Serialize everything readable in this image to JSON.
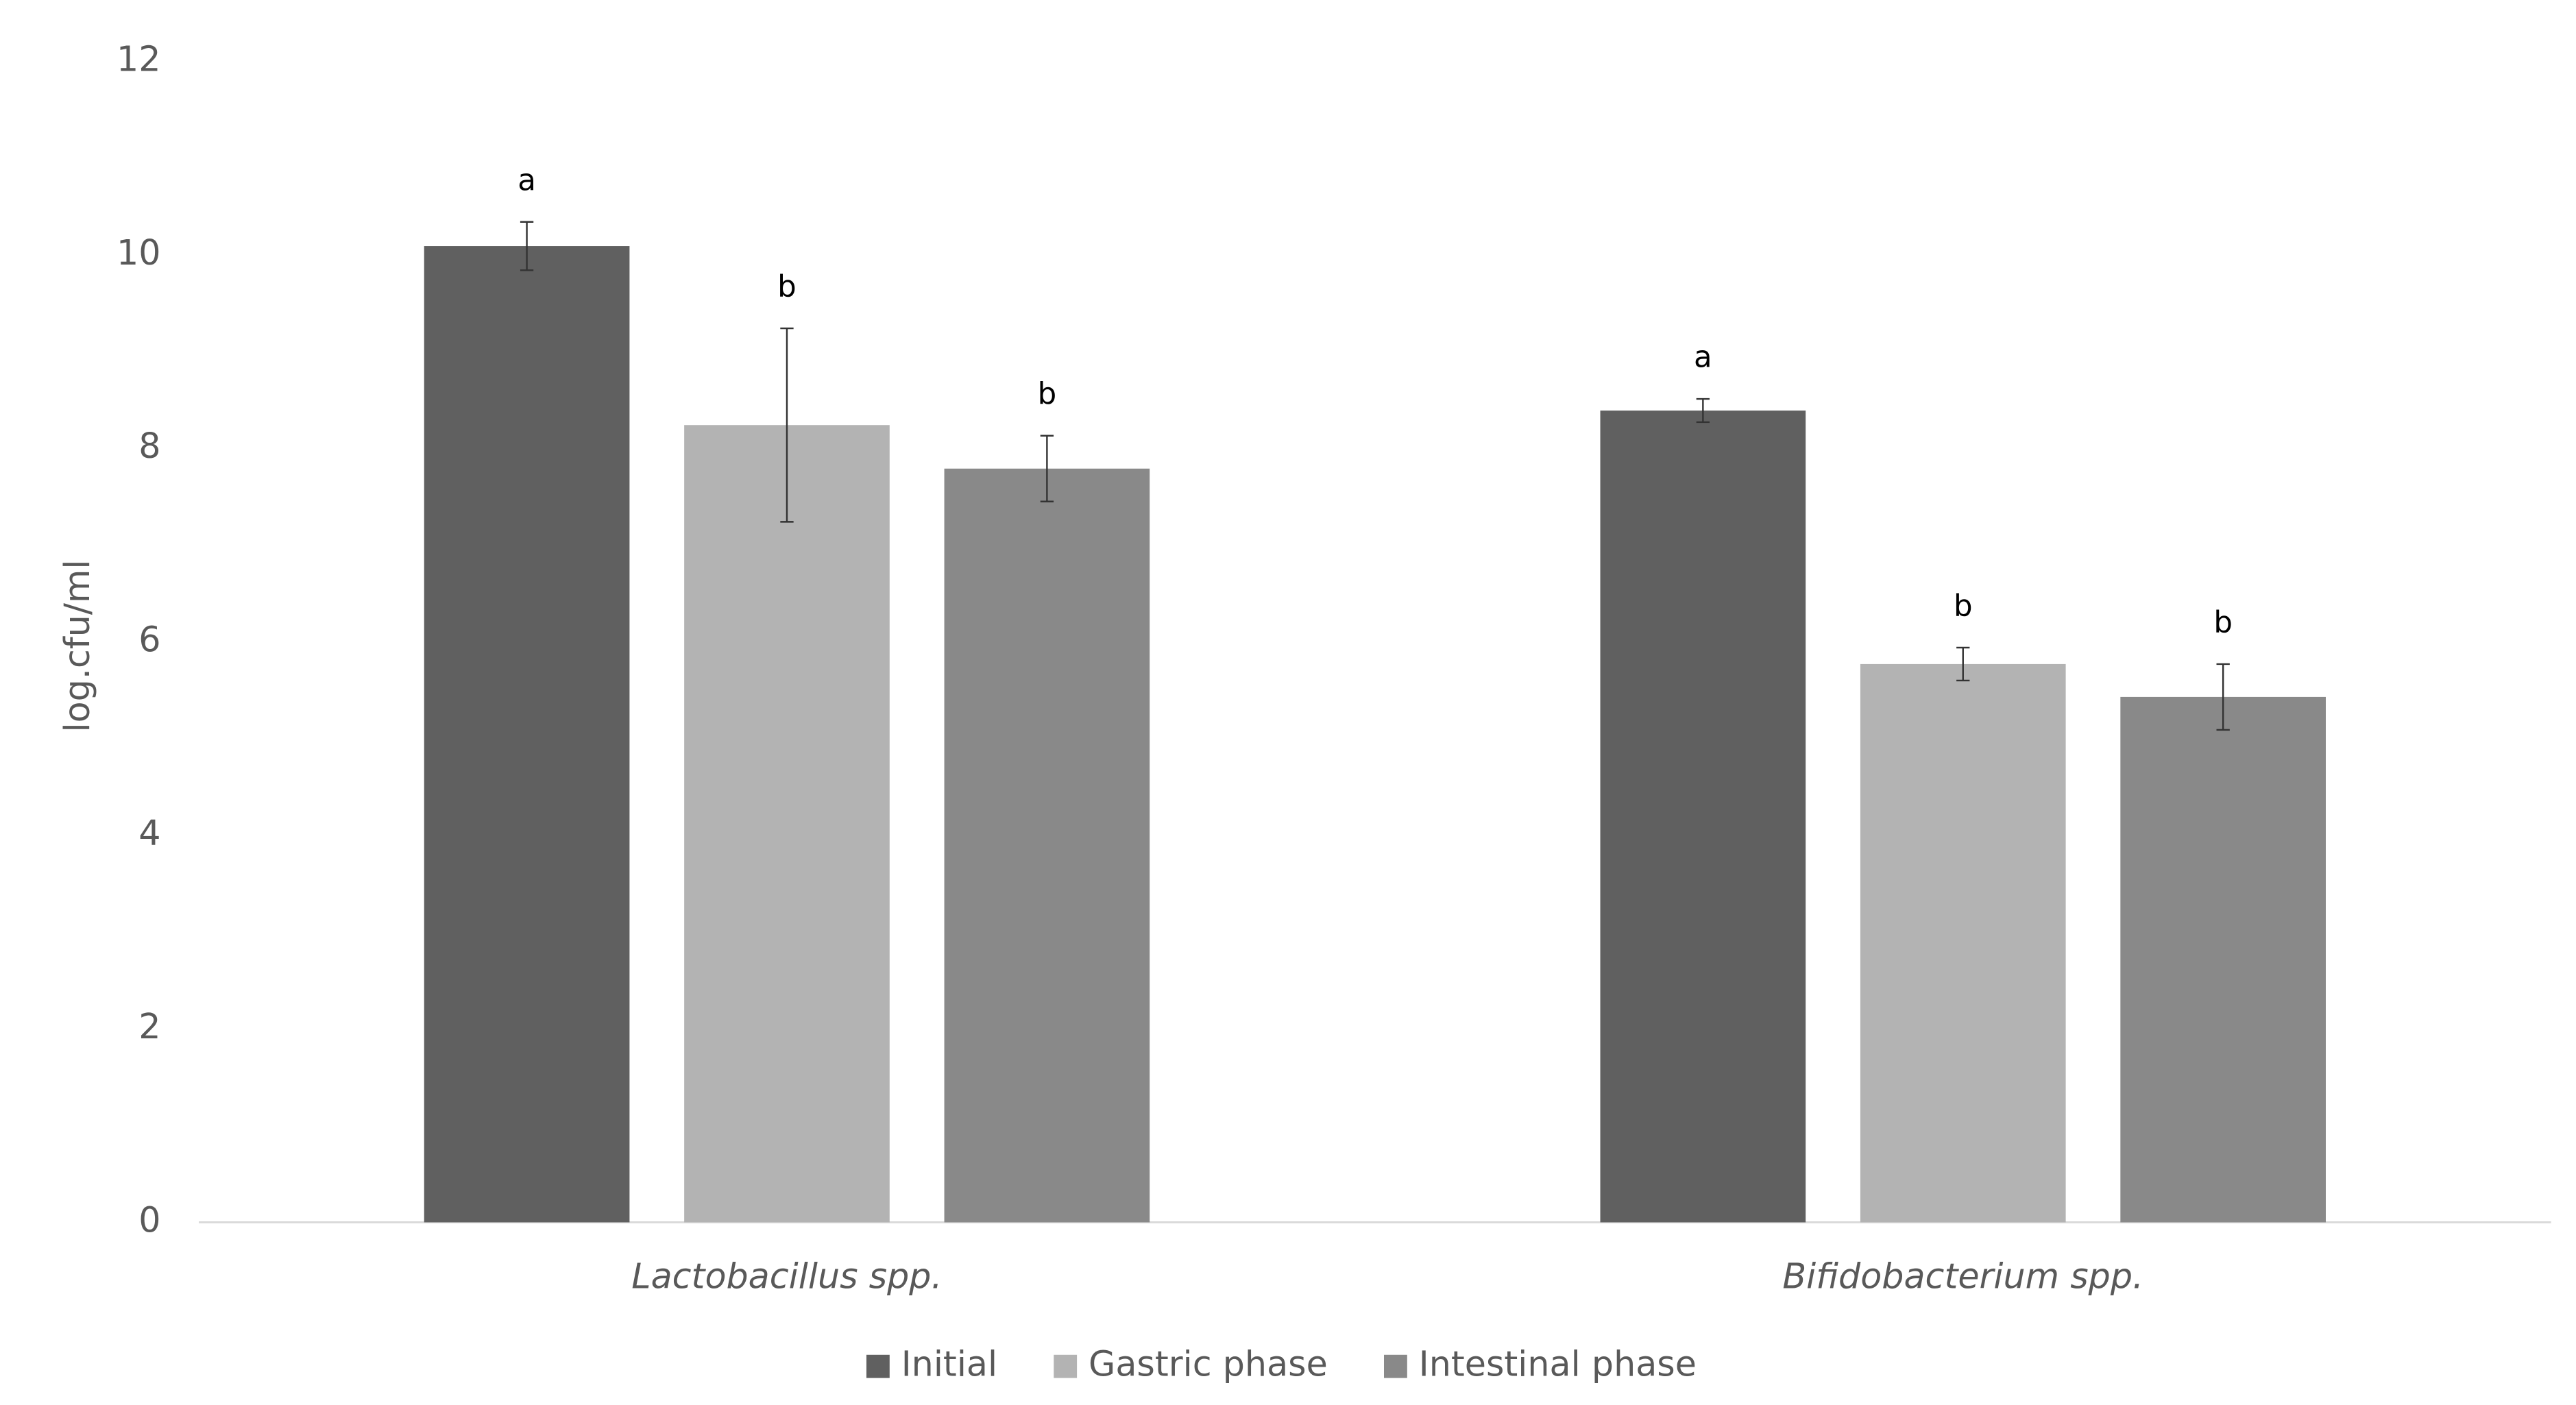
{
  "chart_data": {
    "type": "bar",
    "y_label": "log.cfu/ml",
    "categories": [
      "Lactobacillus spp.",
      "Bifidobacterium spp."
    ],
    "series": [
      {
        "name": "Initial",
        "color": "#606060",
        "values": [
          10.09,
          8.39
        ],
        "errors": [
          0.25,
          0.12
        ],
        "significance": [
          "a",
          "a"
        ]
      },
      {
        "name": "Gastric phase",
        "color": "#b3b3b3",
        "values": [
          8.24,
          5.77
        ],
        "errors": [
          1.0,
          0.17
        ],
        "significance": [
          "b",
          "b"
        ]
      },
      {
        "name": "Intestinal phase",
        "color": "#898989",
        "values": [
          7.79,
          5.43
        ],
        "errors": [
          0.34,
          0.34
        ],
        "significance": [
          "b",
          "b"
        ]
      }
    ],
    "ylim": [
      0,
      12
    ],
    "yticks": [
      0,
      2,
      4,
      6,
      8,
      10,
      12
    ],
    "grid": false,
    "legend": "bottom"
  }
}
